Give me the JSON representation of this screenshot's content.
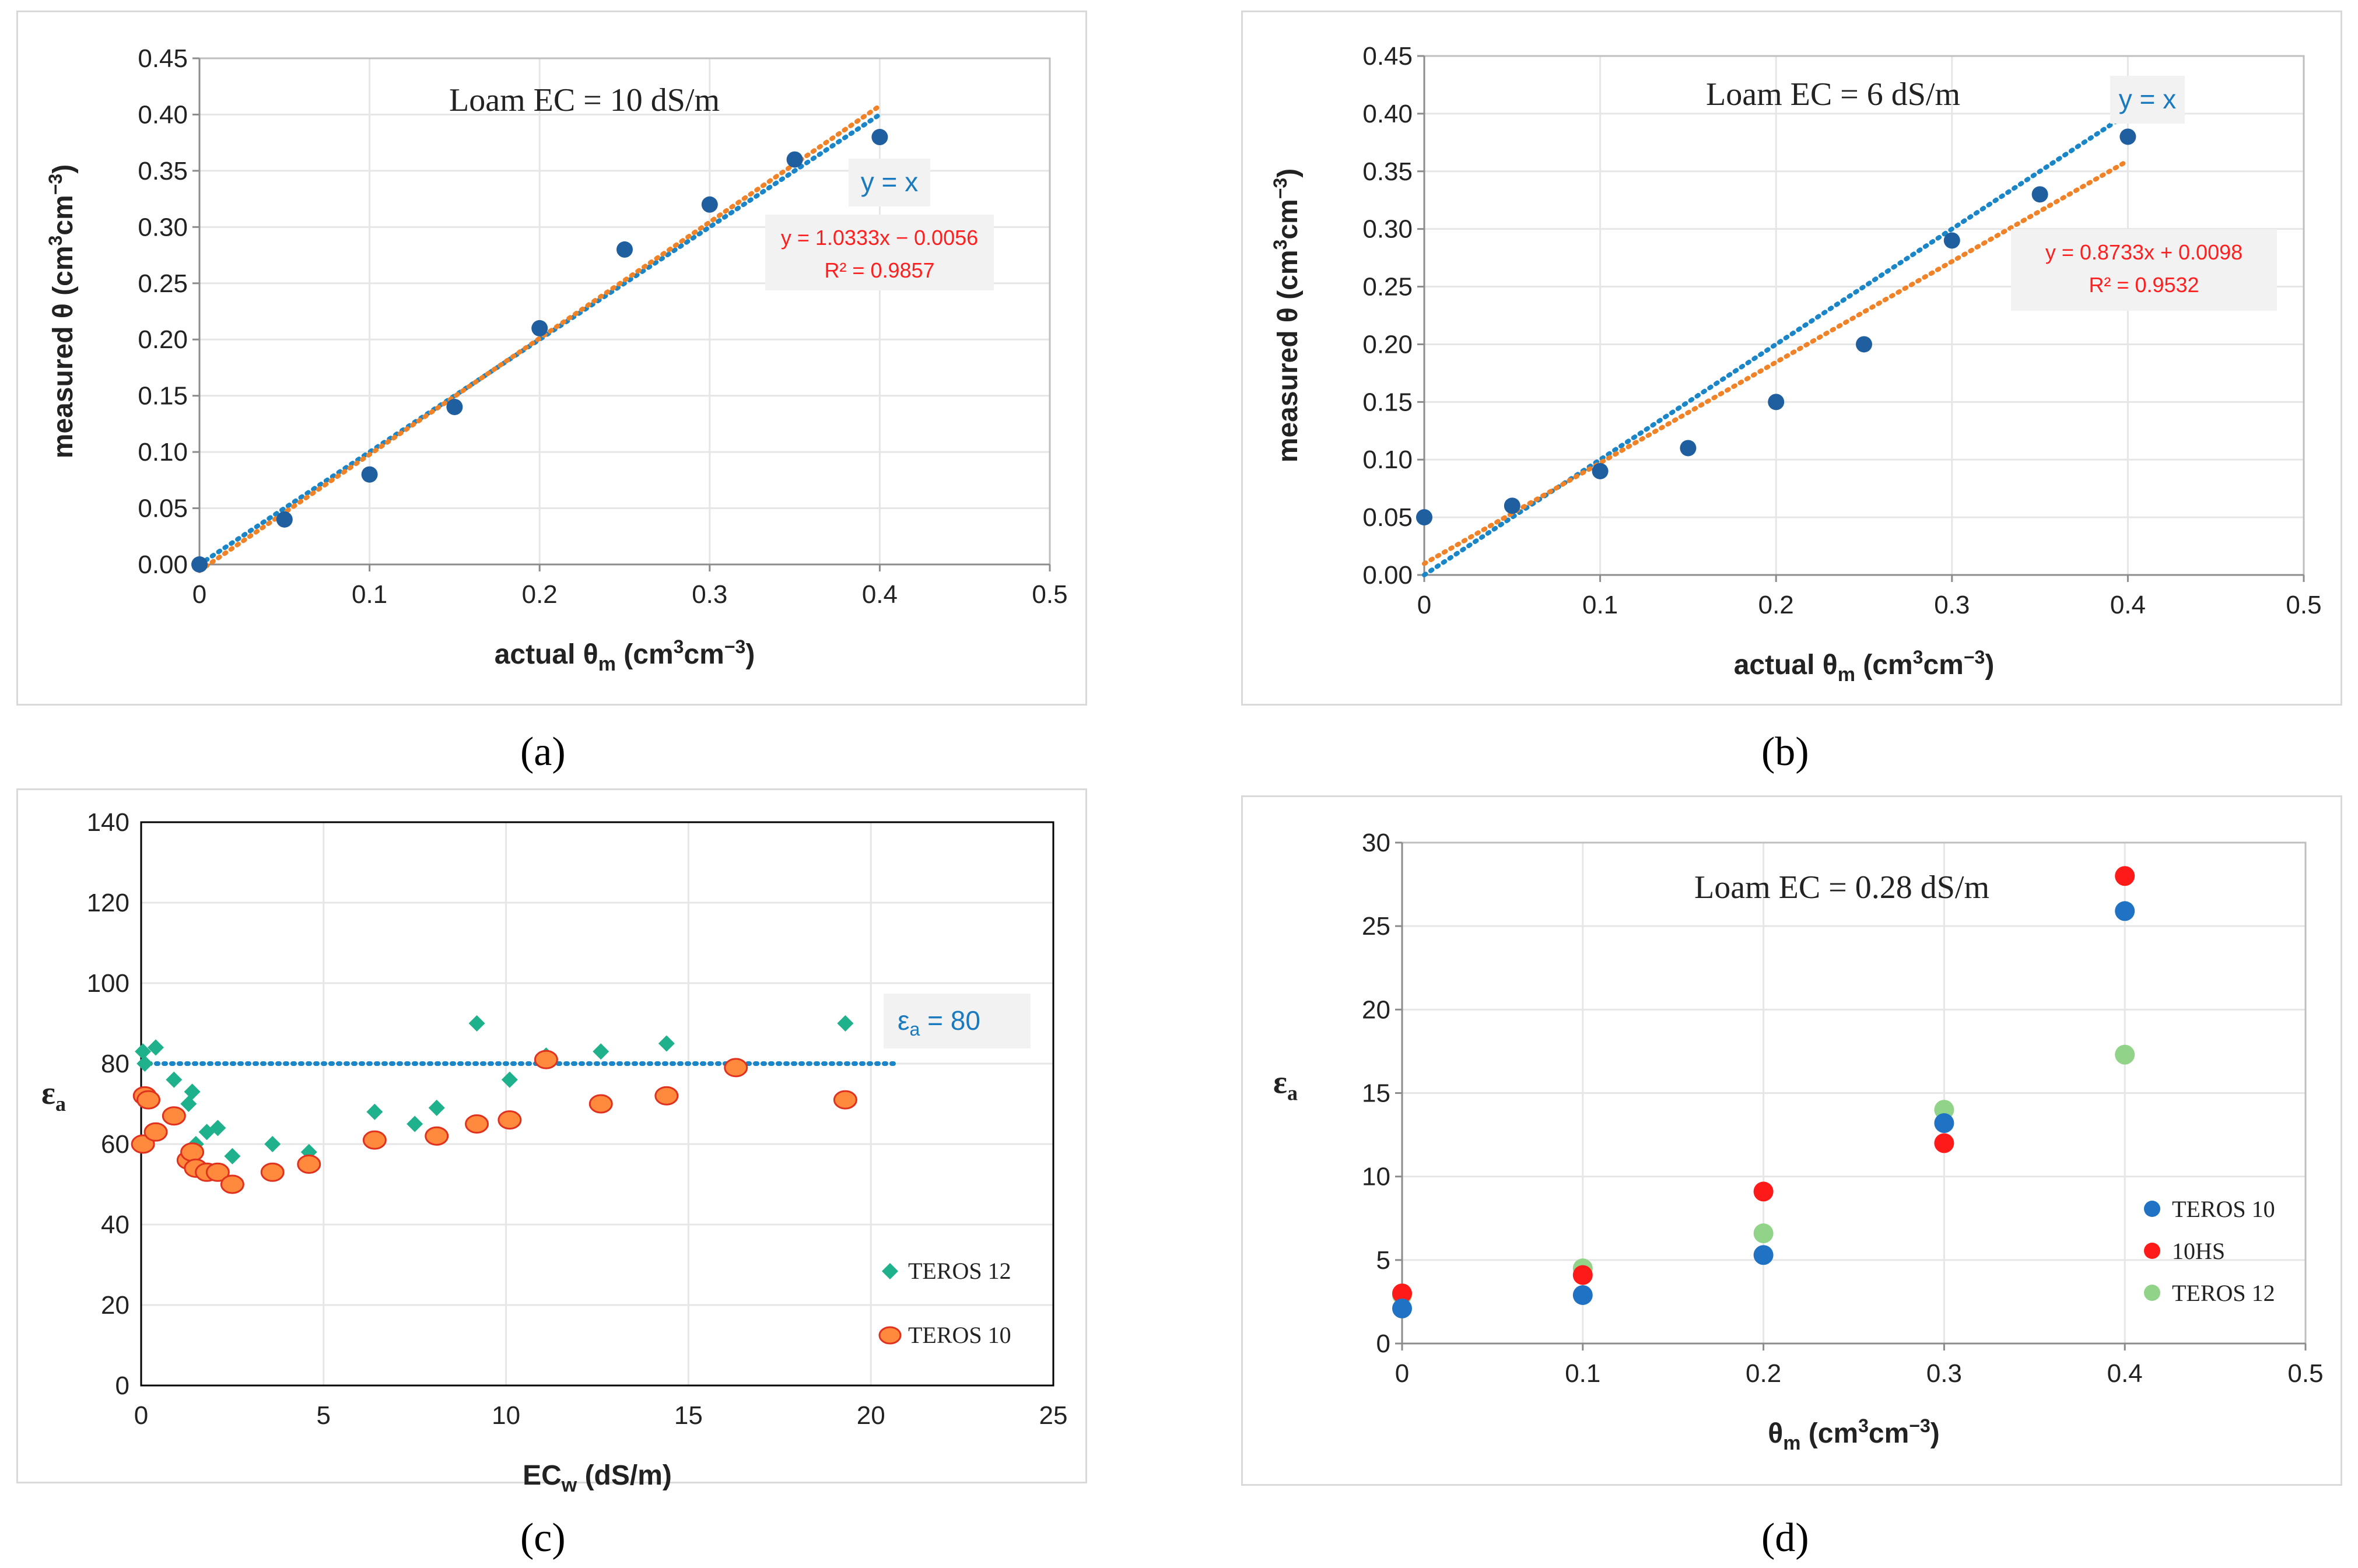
{
  "chart_data": [
    {
      "id": "a",
      "type": "scatter",
      "panel_label": "(a)",
      "annotation": "Loam EC = 10 dS/m",
      "xlabel": "actual θm (cm3cm−3)",
      "xlabel_parts": {
        "main": "actual θ",
        "sub": "m",
        "units": " (cm",
        "sup1": "3",
        "mid": "cm",
        "sup2": "−3",
        "end": ")"
      },
      "ylabel": "measured θ (cm3cm−3)",
      "ylabel_parts": {
        "main": "measured θ",
        "units": " (cm",
        "sup1": "3",
        "mid": "cm",
        "sup2": "−3",
        "end": ")"
      },
      "xlim": [
        0,
        0.5
      ],
      "ylim": [
        0,
        0.45
      ],
      "xticks": [
        "0",
        "0.1",
        "0.2",
        "0.3",
        "0.4",
        "0.5"
      ],
      "yticks": [
        "0.00",
        "0.05",
        "0.10",
        "0.15",
        "0.20",
        "0.25",
        "0.30",
        "0.35",
        "0.40",
        "0.45"
      ],
      "series": [
        {
          "name": "measured",
          "color": "#1f5fa0",
          "x": [
            0,
            0.05,
            0.1,
            0.15,
            0.2,
            0.25,
            0.3,
            0.35,
            0.4
          ],
          "y": [
            0.0,
            0.04,
            0.08,
            0.14,
            0.21,
            0.28,
            0.32,
            0.36,
            0.38
          ]
        }
      ],
      "lines": [
        {
          "name": "y = x",
          "slope": 1,
          "intercept": 0,
          "x_range": [
            0,
            0.4
          ],
          "color": "#1a86c8"
        },
        {
          "name": "fit",
          "slope": 1.0333,
          "intercept": -0.0056,
          "x_range": [
            0,
            0.4
          ],
          "color": "#f08228"
        }
      ],
      "yx_label": "y = x",
      "fit_equation": "y = 1.0333x − 0.0056",
      "fit_r2": "R² = 0.9857"
    },
    {
      "id": "b",
      "type": "scatter",
      "panel_label": "(b)",
      "annotation": "Loam EC = 6 dS/m",
      "xlabel": "actual θm (cm3cm−3)",
      "xlabel_parts": {
        "main": "actual θ",
        "sub": "m",
        "units": " (cm",
        "sup1": "3",
        "mid": "cm",
        "sup2": "−3",
        "end": ")"
      },
      "ylabel": "measured θ (cm3cm−3)",
      "ylabel_parts": {
        "main": "measured θ",
        "units": " (cm",
        "sup1": "3",
        "mid": "cm",
        "sup2": "−3",
        "end": ")"
      },
      "xlim": [
        0,
        0.5
      ],
      "ylim": [
        0,
        0.45
      ],
      "xticks": [
        "0",
        "0.1",
        "0.2",
        "0.3",
        "0.4",
        "0.5"
      ],
      "yticks": [
        "0.00",
        "0.05",
        "0.10",
        "0.15",
        "0.20",
        "0.25",
        "0.30",
        "0.35",
        "0.40",
        "0.45"
      ],
      "series": [
        {
          "name": "measured",
          "color": "#1f5fa0",
          "x": [
            0,
            0.05,
            0.1,
            0.15,
            0.2,
            0.25,
            0.3,
            0.35,
            0.4
          ],
          "y": [
            0.05,
            0.06,
            0.09,
            0.11,
            0.15,
            0.2,
            0.29,
            0.33,
            0.38
          ]
        }
      ],
      "lines": [
        {
          "name": "y = x",
          "slope": 1,
          "intercept": 0,
          "x_range": [
            0,
            0.4
          ],
          "color": "#1a86c8"
        },
        {
          "name": "fit",
          "slope": 0.8733,
          "intercept": 0.0098,
          "x_range": [
            0,
            0.4
          ],
          "color": "#f08228"
        }
      ],
      "yx_label": "y = x",
      "fit_equation": "y = 0.8733x + 0.0098",
      "fit_r2": "R² = 0.9532"
    },
    {
      "id": "c",
      "type": "scatter",
      "panel_label": "(c)",
      "xlabel": "ECw (dS/m)",
      "xlabel_parts": {
        "main": "EC",
        "sub": "w",
        "units": " (dS/m)"
      },
      "ylabel": "εa",
      "ylabel_parts": {
        "main": "ε",
        "sub": "a"
      },
      "xlim": [
        0,
        25
      ],
      "ylim": [
        0,
        140
      ],
      "xticks": [
        "0",
        "5",
        "10",
        "15",
        "20",
        "25"
      ],
      "yticks": [
        "0",
        "20",
        "40",
        "60",
        "80",
        "100",
        "120",
        "140"
      ],
      "hline": {
        "y": 80,
        "x_range": [
          0,
          20.7
        ],
        "label": "εa = 80",
        "label_main": "ε",
        "label_sub": "a",
        "label_rest": " = 80",
        "color": "#1a86c8"
      },
      "series": [
        {
          "name": "TEROS 12",
          "color": "#1fb08c",
          "marker": "diamond",
          "x": [
            0.05,
            0.1,
            0.4,
            0.9,
            1.3,
            1.4,
            1.5,
            1.8,
            2.1,
            2.5,
            3.6,
            4.6,
            6.4,
            7.5,
            8.1,
            9.2,
            10.1,
            11.1,
            12.6,
            14.4,
            19.3
          ],
          "y": [
            83,
            80,
            84,
            76,
            70,
            73,
            60,
            63,
            64,
            57,
            60,
            58,
            68,
            65,
            69,
            90,
            76,
            82,
            83,
            85,
            90
          ]
        },
        {
          "name": "TEROS 10",
          "color": "#ff8a3d",
          "marker": "circle",
          "x": [
            0.05,
            0.1,
            0.2,
            0.4,
            0.9,
            1.3,
            1.4,
            1.5,
            1.8,
            2.1,
            2.5,
            3.6,
            4.6,
            6.4,
            8.1,
            9.2,
            10.1,
            11.1,
            12.6,
            14.4,
            16.3,
            19.3
          ],
          "y": [
            60,
            72,
            71,
            63,
            67,
            56,
            58,
            54,
            53,
            53,
            50,
            53,
            55,
            61,
            62,
            65,
            66,
            81,
            70,
            72,
            79,
            71
          ]
        }
      ]
    },
    {
      "id": "d",
      "type": "scatter",
      "panel_label": "(d)",
      "annotation": "Loam  EC = 0.28 dS/m",
      "xlabel": "θm (cm3cm−3)",
      "xlabel_parts": {
        "main": "θ",
        "sub": "m",
        "units": " (cm",
        "sup1": "3",
        "mid": "cm",
        "sup2": "−3",
        "end": ")"
      },
      "ylabel": "εa",
      "ylabel_parts": {
        "main": "ε",
        "sub": "a"
      },
      "xlim": [
        0,
        0.5
      ],
      "ylim": [
        0,
        30
      ],
      "xticks": [
        "0",
        "0.1",
        "0.2",
        "0.3",
        "0.4",
        "0.5"
      ],
      "yticks": [
        "0",
        "5",
        "10",
        "15",
        "20",
        "25",
        "30"
      ],
      "series": [
        {
          "name": "TEROS 10",
          "color": "#1f72c4",
          "x": [
            0,
            0.1,
            0.2,
            0.3,
            0.4
          ],
          "y": [
            2.1,
            2.9,
            5.3,
            13.2,
            25.9
          ]
        },
        {
          "name": "10HS",
          "color": "#ff1a1a",
          "x": [
            0,
            0.1,
            0.2,
            0.3,
            0.4
          ],
          "y": [
            3.0,
            4.1,
            9.1,
            12.0,
            28.0
          ]
        },
        {
          "name": "TEROS 12",
          "color": "#92d38a",
          "x": [
            0,
            0.1,
            0.2,
            0.3,
            0.4
          ],
          "y": [
            2.9,
            4.5,
            6.6,
            14.0,
            17.3
          ]
        }
      ]
    }
  ]
}
